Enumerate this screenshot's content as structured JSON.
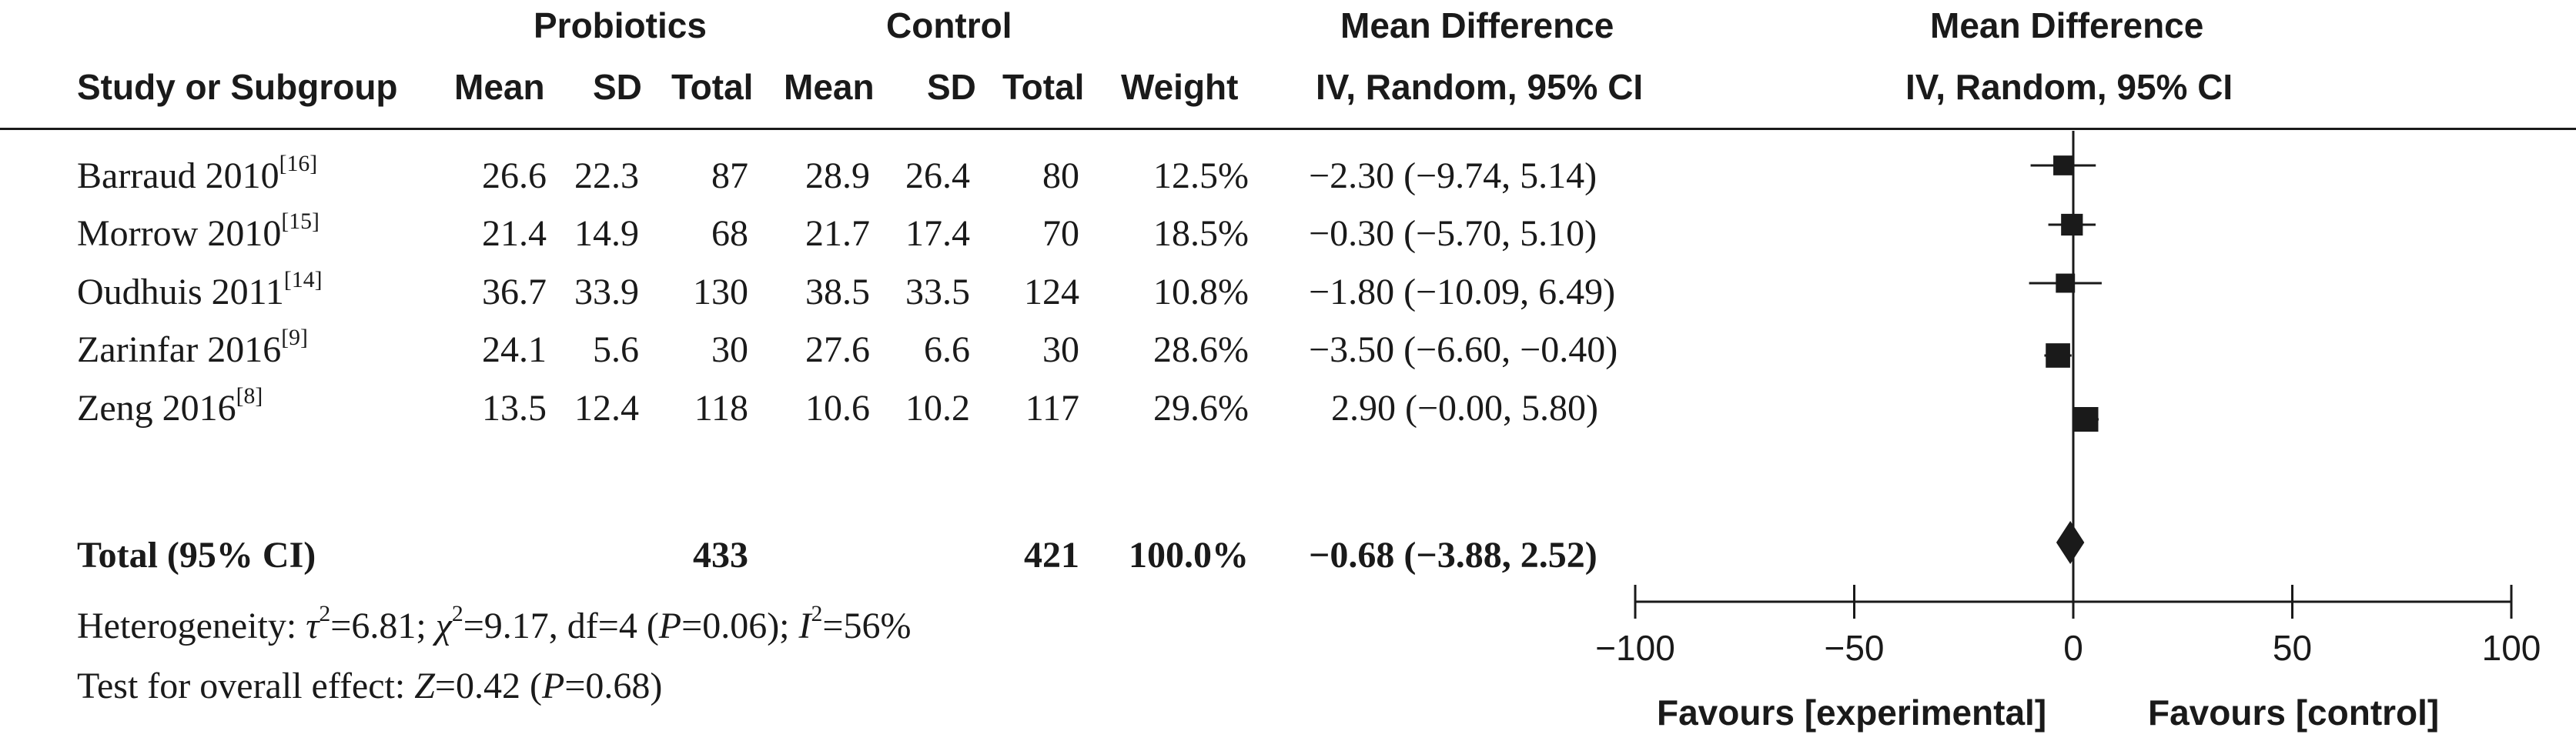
{
  "headers": {
    "group_probiotics": "Probiotics",
    "group_control": "Control",
    "md_left_line1": "Mean Difference",
    "md_left_line2": "IV, Random, 95% CI",
    "md_right_line1": "Mean Difference",
    "md_right_line2": "IV, Random, 95% CI",
    "study": "Study or Subgroup",
    "p_mean": "Mean",
    "p_sd": "SD",
    "p_total": "Total",
    "c_mean": "Mean",
    "c_sd": "SD",
    "c_total": "Total",
    "weight": "Weight"
  },
  "studies": [
    {
      "name": "Barraud 2010",
      "ref": "[16]",
      "p_mean": "26.6",
      "p_sd": "22.3",
      "p_total": "87",
      "c_mean": "28.9",
      "c_sd": "26.4",
      "c_total": "80",
      "weight": "12.5%",
      "ci_text": "−2.30 (−9.74, 5.14)"
    },
    {
      "name": "Morrow 2010",
      "ref": "[15]",
      "p_mean": "21.4",
      "p_sd": "14.9",
      "p_total": "68",
      "c_mean": "21.7",
      "c_sd": "17.4",
      "c_total": "70",
      "weight": "18.5%",
      "ci_text": "−0.30 (−5.70, 5.10)"
    },
    {
      "name": "Oudhuis 2011",
      "ref": "[14]",
      "p_mean": "36.7",
      "p_sd": "33.9",
      "p_total": "130",
      "c_mean": "38.5",
      "c_sd": "33.5",
      "c_total": "124",
      "weight": "10.8%",
      "ci_text": "−1.80 (−10.09, 6.49)"
    },
    {
      "name": "Zarinfar 2016",
      "ref": "[9]",
      "p_mean": "24.1",
      "p_sd": "5.6",
      "p_total": "30",
      "c_mean": "27.6",
      "c_sd": "6.6",
      "c_total": "30",
      "weight": "28.6%",
      "ci_text": "−3.50 (−6.60, −0.40)"
    },
    {
      "name": "Zeng 2016",
      "ref": "[8]",
      "p_mean": "13.5",
      "p_sd": "12.4",
      "p_total": "118",
      "c_mean": "10.6",
      "c_sd": "10.2",
      "c_total": "117",
      "weight": "29.6%",
      "ci_text": "2.90 (−0.00, 5.80)"
    }
  ],
  "total": {
    "label": "Total (95% CI)",
    "p_total": "433",
    "c_total": "421",
    "weight": "100.0%",
    "ci_text": "−0.68 (−3.88, 2.52)"
  },
  "heterogeneity": {
    "prefix": "Heterogeneity: ",
    "tau_sym": "τ",
    "tau_val": "=6.81; ",
    "chi_sym": "χ",
    "chi_val": "=9.17, df=4 (",
    "p_sym": "P",
    "p_val": "=0.06); ",
    "i_sym": "I",
    "i_val": "=56%",
    "sq": "2"
  },
  "overall": {
    "prefix": "Test for overall effect: ",
    "z_sym": "Z",
    "z_val": "=0.42 (",
    "p_sym": "P",
    "p_val": "=0.68)"
  },
  "favours": {
    "left": "Favours [experimental]",
    "right": "Favours [control]"
  },
  "chart_data": {
    "type": "forest",
    "xlim": [
      -100,
      100
    ],
    "ticks": [
      -100,
      -50,
      0,
      50,
      100
    ],
    "tick_labels": [
      "−100",
      "−50",
      "0",
      "50",
      "100"
    ],
    "series": [
      {
        "study": "Barraud 2010",
        "md": -2.3,
        "lo": -9.74,
        "hi": 5.14,
        "weight": 12.5
      },
      {
        "study": "Morrow 2010",
        "md": -0.3,
        "lo": -5.7,
        "hi": 5.1,
        "weight": 18.5
      },
      {
        "study": "Oudhuis 2011",
        "md": -1.8,
        "lo": -10.09,
        "hi": 6.49,
        "weight": 10.8
      },
      {
        "study": "Zarinfar 2016",
        "md": -3.5,
        "lo": -6.6,
        "hi": -0.4,
        "weight": 28.6
      },
      {
        "study": "Zeng 2016",
        "md": 2.9,
        "lo": -0.0,
        "hi": 5.8,
        "weight": 29.6
      }
    ],
    "pooled": {
      "md": -0.68,
      "lo": -3.88,
      "hi": 2.52
    }
  }
}
